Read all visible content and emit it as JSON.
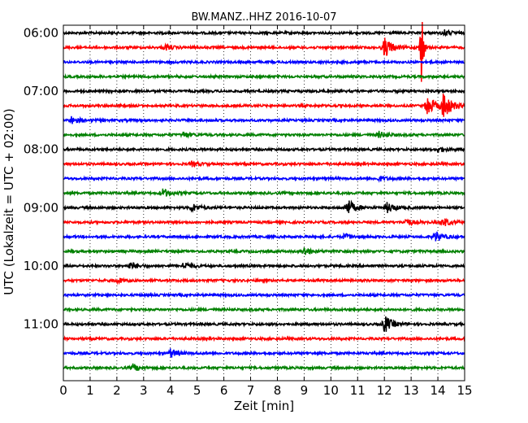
{
  "chart_data": {
    "type": "line",
    "title": "BW.MANZ..HHZ 2016-10-07",
    "xlabel": "Zeit  [min]",
    "ylabel": "UTC (Lokalzeit = UTC + 02:00)",
    "xlim": [
      0,
      15
    ],
    "x_ticks": [
      "0",
      "1",
      "2",
      "3",
      "4",
      "5",
      "6",
      "7",
      "8",
      "9",
      "10",
      "11",
      "12",
      "13",
      "14",
      "15"
    ],
    "y_ticks": [
      "06:00",
      "07:00",
      "08:00",
      "09:00",
      "10:00",
      "11:00"
    ],
    "grid": "vertical-dotted",
    "trace_count": 24,
    "trace_colors": [
      "#000000",
      "#ff0000",
      "#0000ff",
      "#008000"
    ],
    "trace_start_times": [
      "06:00",
      "06:15",
      "06:30",
      "06:45",
      "07:00",
      "07:15",
      "07:30",
      "07:45",
      "08:00",
      "08:15",
      "08:30",
      "08:45",
      "09:00",
      "09:15",
      "09:30",
      "09:45",
      "10:00",
      "10:15",
      "10:30",
      "10:45",
      "11:00",
      "11:15",
      "11:30",
      "11:45"
    ],
    "events": [
      {
        "trace": 0,
        "t": 14.2,
        "amp": 0.35
      },
      {
        "trace": 1,
        "t": 12.0,
        "amp": 1.2
      },
      {
        "trace": 1,
        "t": 3.8,
        "amp": 0.3
      },
      {
        "trace": 1,
        "t": 13.4,
        "amp": 5.5
      },
      {
        "trace": 5,
        "t": 14.2,
        "amp": 1.6
      },
      {
        "trace": 5,
        "t": 13.6,
        "amp": 1.2
      },
      {
        "trace": 6,
        "t": 0.3,
        "amp": 0.4
      },
      {
        "trace": 7,
        "t": 4.5,
        "amp": 0.3
      },
      {
        "trace": 7,
        "t": 11.8,
        "amp": 0.35
      },
      {
        "trace": 8,
        "t": 14.0,
        "amp": 0.3
      },
      {
        "trace": 9,
        "t": 4.8,
        "amp": 0.25
      },
      {
        "trace": 10,
        "t": 11.8,
        "amp": 0.25
      },
      {
        "trace": 11,
        "t": 3.7,
        "amp": 0.5
      },
      {
        "trace": 12,
        "t": 4.8,
        "amp": 0.45
      },
      {
        "trace": 12,
        "t": 10.6,
        "amp": 1.0
      },
      {
        "trace": 12,
        "t": 12.1,
        "amp": 0.55
      },
      {
        "trace": 13,
        "t": 12.8,
        "amp": 0.4
      },
      {
        "trace": 13,
        "t": 14.2,
        "amp": 0.45
      },
      {
        "trace": 14,
        "t": 10.5,
        "amp": 0.3
      },
      {
        "trace": 14,
        "t": 13.9,
        "amp": 0.6
      },
      {
        "trace": 15,
        "t": 9.0,
        "amp": 0.45
      },
      {
        "trace": 16,
        "t": 2.5,
        "amp": 0.4
      },
      {
        "trace": 16,
        "t": 4.5,
        "amp": 0.45
      },
      {
        "trace": 17,
        "t": 2.0,
        "amp": 0.25
      },
      {
        "trace": 20,
        "t": 12.0,
        "amp": 1.0
      },
      {
        "trace": 22,
        "t": 4.0,
        "amp": 0.5
      },
      {
        "trace": 23,
        "t": 2.6,
        "amp": 0.4
      }
    ]
  }
}
